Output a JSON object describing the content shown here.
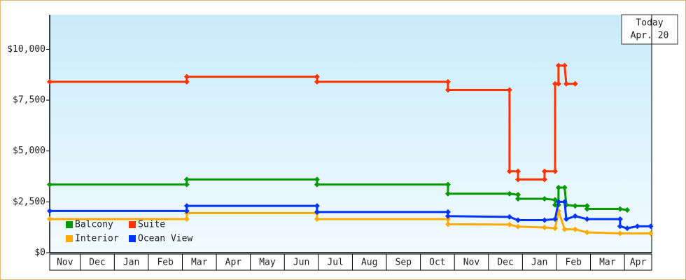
{
  "chart_data": {
    "type": "line",
    "annotation": [
      "Today",
      "Apr. 20"
    ],
    "xlim": [
      0.1,
      17.8
    ],
    "xticks": [
      {
        "value": 0,
        "label": "Nov"
      },
      {
        "value": 1,
        "label": "Dec"
      },
      {
        "value": 2,
        "label": "Jan"
      },
      {
        "value": 3,
        "label": "Feb"
      },
      {
        "value": 4,
        "label": "Mar"
      },
      {
        "value": 5,
        "label": "Apr"
      },
      {
        "value": 6,
        "label": "May"
      },
      {
        "value": 7,
        "label": "Jun"
      },
      {
        "value": 8,
        "label": "Jul"
      },
      {
        "value": 9,
        "label": "Aug"
      },
      {
        "value": 10,
        "label": "Sep"
      },
      {
        "value": 11,
        "label": "Oct"
      },
      {
        "value": 12,
        "label": "Nov"
      },
      {
        "value": 13,
        "label": "Dec"
      },
      {
        "value": 14,
        "label": "Jan"
      },
      {
        "value": 15,
        "label": "Feb"
      },
      {
        "value": 16,
        "label": "Mar"
      },
      {
        "value": 17,
        "label": "Apr"
      }
    ],
    "ylim": [
      0,
      11700
    ],
    "yticks": [
      {
        "value": 0,
        "label": "$0"
      },
      {
        "value": 2500,
        "label": "$2,500"
      },
      {
        "value": 5000,
        "label": "$5,000"
      },
      {
        "value": 7500,
        "label": "$7,500"
      },
      {
        "value": 10000,
        "label": "$10,000"
      }
    ],
    "series": [
      {
        "name": "Balcony",
        "color": "#009900",
        "x": [
          0.1,
          4.13,
          4.13,
          7.96,
          7.96,
          11.81,
          11.81,
          13.62,
          13.87,
          13.87,
          14.65,
          14.96,
          14.96,
          15.06,
          15.06,
          15.24,
          15.29,
          15.55,
          15.9,
          15.9,
          16.87,
          17.08
        ],
        "values": [
          3350,
          3350,
          3600,
          3600,
          3350,
          3350,
          2900,
          2900,
          2850,
          2650,
          2650,
          2600,
          2350,
          2350,
          3200,
          3200,
          2350,
          2300,
          2300,
          2150,
          2150,
          2100
        ]
      },
      {
        "name": "Suite",
        "color": "#ff3300",
        "x": [
          0.1,
          4.13,
          4.13,
          7.96,
          7.96,
          11.81,
          11.81,
          13.62,
          13.62,
          13.87,
          13.87,
          14.65,
          14.65,
          14.96,
          14.96,
          15.06,
          15.06,
          15.24,
          15.29,
          15.55
        ],
        "values": [
          8400,
          8400,
          8650,
          8650,
          8400,
          8400,
          8000,
          8000,
          4000,
          4000,
          3600,
          3600,
          4000,
          4000,
          8300,
          8300,
          9200,
          9200,
          8300,
          8300
        ]
      },
      {
        "name": "Interior",
        "color": "#ffaa00",
        "x": [
          0.1,
          4.13,
          4.13,
          7.96,
          7.96,
          11.81,
          11.81,
          13.62,
          13.87,
          14.65,
          14.96,
          15.06,
          15.24,
          15.55,
          15.9,
          16.87,
          17.77
        ],
        "values": [
          1650,
          1650,
          1950,
          1950,
          1650,
          1650,
          1400,
          1380,
          1280,
          1240,
          1200,
          2050,
          1150,
          1150,
          1000,
          950,
          950
        ]
      },
      {
        "name": "Ocean View",
        "color": "#0033ff",
        "x": [
          0.1,
          4.13,
          4.13,
          7.96,
          7.96,
          11.81,
          11.81,
          13.62,
          13.87,
          14.65,
          14.96,
          15.06,
          15.24,
          15.29,
          15.55,
          15.9,
          16.87,
          16.87,
          17.08,
          17.38,
          17.77
        ],
        "values": [
          2050,
          2050,
          2300,
          2300,
          2000,
          2000,
          1800,
          1760,
          1600,
          1600,
          1650,
          2500,
          2500,
          1650,
          1800,
          1650,
          1650,
          1300,
          1200,
          1300,
          1300
        ]
      }
    ]
  }
}
